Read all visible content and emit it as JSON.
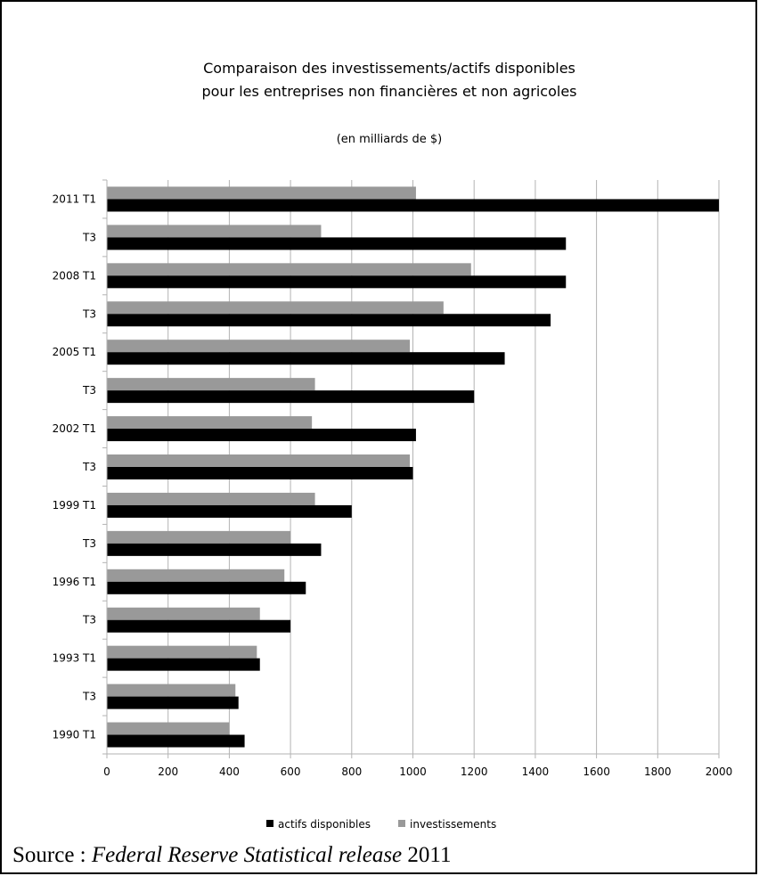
{
  "chart_data": {
    "type": "bar",
    "orientation": "horizontal",
    "title": "Comparaison des investissements/actifs disponibles",
    "title_line2": "pour les entreprises non financières et non agricoles",
    "subtitle": "(en milliards de $)",
    "categories": [
      "2011 T1",
      "T3",
      "2008 T1",
      "T3",
      "2005 T1",
      "T3",
      "2002 T1",
      "T3",
      "1999 T1",
      "T3",
      "1996 T1",
      "T3",
      "1993 T1",
      "T3",
      "1990 T1"
    ],
    "series": [
      {
        "name": "investissements",
        "color": "#999999",
        "values": [
          1010,
          700,
          1190,
          1100,
          990,
          680,
          670,
          990,
          680,
          600,
          580,
          500,
          490,
          420,
          400
        ]
      },
      {
        "name": "actifs disponibles",
        "color": "#000000",
        "values": [
          2000,
          1500,
          1500,
          1450,
          1300,
          1200,
          1010,
          1000,
          800,
          700,
          650,
          600,
          500,
          430,
          450
        ]
      }
    ],
    "xlim": [
      0,
      2000
    ],
    "xticks": [
      "0",
      "200",
      "400",
      "600",
      "800",
      "1000",
      "1200",
      "1400",
      "1600",
      "1800",
      "2000"
    ],
    "grid": true,
    "legend": {
      "position": "bottom",
      "items": [
        {
          "label": "actifs disponibles",
          "color": "#000000"
        },
        {
          "label": "investissements",
          "color": "#999999"
        }
      ]
    }
  },
  "source": {
    "prefix": "Source : ",
    "italic": "Federal Reserve Statistical release",
    "suffix": " 2011"
  }
}
